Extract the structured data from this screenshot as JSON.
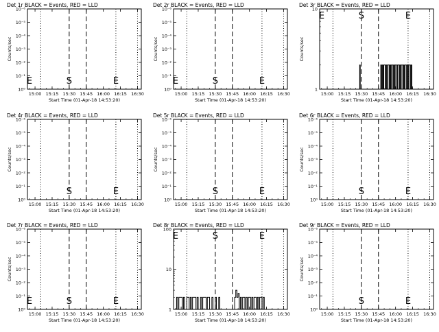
{
  "chart_data": [
    {
      "type": "line",
      "title": "Det 1r BLACK = Events, RED = LLD",
      "xlabel": "Start Time (01-Apr-18 14:53:20)",
      "ylabel": "Counts/sec",
      "x_ticks": [
        "15:00",
        "15:15",
        "15:30",
        "15:45",
        "16:00",
        "16:15",
        "16:30"
      ],
      "xlim": [
        "14:53:20",
        "16:33:20"
      ],
      "y_scale": "log",
      "y_tick_labels": [
        "10⁰",
        "10⁻¹",
        "10⁻²",
        "10⁻³",
        "10⁻⁴",
        "10⁻⁵",
        "10⁻⁶"
      ],
      "marker_lines": [
        {
          "time": "15:05",
          "style": "dotted",
          "label": ""
        },
        {
          "time": "15:30",
          "style": "dashed",
          "label": "S"
        },
        {
          "time": "15:45",
          "style": "dashed",
          "label": ""
        },
        {
          "time": "16:11",
          "style": "dotted",
          "label": "E"
        },
        {
          "time": "16:30",
          "style": "dotted",
          "label": ""
        }
      ],
      "corner_label": "E",
      "series": []
    },
    {
      "type": "line",
      "title": "Det 2r BLACK = Events, RED = LLD",
      "xlabel": "Start Time (01-Apr-18 14:53:20)",
      "ylabel": "Counts/sec",
      "x_ticks": [
        "15:00",
        "15:15",
        "15:30",
        "15:45",
        "16:00",
        "16:15",
        "16:30"
      ],
      "xlim": [
        "14:53:20",
        "16:33:20"
      ],
      "y_scale": "log",
      "y_tick_labels": [
        "10⁰",
        "10⁻¹",
        "10⁻²",
        "10⁻³",
        "10⁻⁴",
        "10⁻⁵",
        "10⁻⁶"
      ],
      "marker_lines": [
        {
          "time": "15:05",
          "style": "dotted",
          "label": ""
        },
        {
          "time": "15:30",
          "style": "dashed",
          "label": "S"
        },
        {
          "time": "15:45",
          "style": "dashed",
          "label": ""
        },
        {
          "time": "16:11",
          "style": "dotted",
          "label": "E"
        },
        {
          "time": "16:30",
          "style": "dotted",
          "label": ""
        }
      ],
      "corner_label": "E",
      "series": []
    },
    {
      "type": "line",
      "title": "Det 3r BLACK = Events, RED = LLD",
      "xlabel": "Start Time (01-Apr-18 14:53:20)",
      "ylabel": "Counts/sec",
      "x_ticks": [
        "15:00",
        "15:15",
        "15:30",
        "15:45",
        "16:00",
        "16:15",
        "16:30"
      ],
      "xlim": [
        "14:53:20",
        "16:33:20"
      ],
      "y_scale": "log",
      "y_tick_labels": [
        "1",
        "10"
      ],
      "ylim": [
        1,
        10
      ],
      "marker_lines": [
        {
          "time": "15:05",
          "style": "dotted",
          "label": ""
        },
        {
          "time": "15:30",
          "style": "dashed",
          "label": "S"
        },
        {
          "time": "15:45",
          "style": "dashed",
          "label": ""
        },
        {
          "time": "16:11",
          "style": "dotted",
          "label": "E"
        },
        {
          "time": "16:30",
          "style": "dotted",
          "label": ""
        }
      ],
      "corner_label": "E",
      "series": [
        {
          "color": "#000000",
          "points": [
            {
              "t": "15:28:30",
              "y": 2
            },
            {
              "t": "15:29:00",
              "y": 1
            },
            {
              "t": "15:47:00",
              "y": 2
            },
            {
              "t": "15:47:40",
              "y": 1
            },
            {
              "t": "15:48:20",
              "y": 2
            },
            {
              "t": "15:49:00",
              "y": 1
            },
            {
              "t": "15:49:40",
              "y": 2
            },
            {
              "t": "15:50:20",
              "y": 2
            },
            {
              "t": "15:51:00",
              "y": 1
            },
            {
              "t": "15:51:40",
              "y": 2
            },
            {
              "t": "15:52:20",
              "y": 1
            },
            {
              "t": "15:53:00",
              "y": 2
            },
            {
              "t": "15:53:40",
              "y": 2
            },
            {
              "t": "15:54:20",
              "y": 1
            },
            {
              "t": "15:55:00",
              "y": 2
            },
            {
              "t": "15:55:40",
              "y": 1
            },
            {
              "t": "15:56:20",
              "y": 2
            },
            {
              "t": "15:57:00",
              "y": 2
            },
            {
              "t": "15:57:40",
              "y": 1
            },
            {
              "t": "15:58:20",
              "y": 2
            },
            {
              "t": "15:59:00",
              "y": 1
            },
            {
              "t": "15:59:40",
              "y": 2
            },
            {
              "t": "16:00:20",
              "y": 2
            },
            {
              "t": "16:01:00",
              "y": 1
            },
            {
              "t": "16:01:40",
              "y": 2
            },
            {
              "t": "16:02:20",
              "y": 2
            },
            {
              "t": "16:03:00",
              "y": 1
            },
            {
              "t": "16:03:40",
              "y": 2
            },
            {
              "t": "16:04:20",
              "y": 1
            },
            {
              "t": "16:05:00",
              "y": 2
            },
            {
              "t": "16:05:40",
              "y": 2
            },
            {
              "t": "16:06:20",
              "y": 1
            },
            {
              "t": "16:07:00",
              "y": 2
            },
            {
              "t": "16:07:40",
              "y": 1
            },
            {
              "t": "16:08:20",
              "y": 2
            },
            {
              "t": "16:09:00",
              "y": 2
            },
            {
              "t": "16:09:40",
              "y": 1
            },
            {
              "t": "16:10:20",
              "y": 2
            },
            {
              "t": "16:11:00",
              "y": 1
            },
            {
              "t": "16:11:40",
              "y": 2
            },
            {
              "t": "16:12:20",
              "y": 2
            },
            {
              "t": "16:13:00",
              "y": 1
            },
            {
              "t": "16:13:40",
              "y": 2
            },
            {
              "t": "16:14:20",
              "y": 1
            }
          ]
        }
      ]
    },
    {
      "type": "line",
      "title": "Det 4r BLACK = Events, RED = LLD",
      "xlabel": "Start Time (01-Apr-18 14:53:20)",
      "ylabel": "Counts/sec",
      "x_ticks": [
        "15:00",
        "15:15",
        "15:30",
        "15:45",
        "16:00",
        "16:15",
        "16:30"
      ],
      "xlim": [
        "14:53:20",
        "16:33:20"
      ],
      "y_scale": "log",
      "y_tick_labels": [
        "10⁰",
        "10⁻¹",
        "10⁻²",
        "10⁻³",
        "10⁻⁴",
        "10⁻⁵",
        "10⁻⁶"
      ],
      "marker_lines": [
        {
          "time": "15:05",
          "style": "dotted",
          "label": ""
        },
        {
          "time": "15:30",
          "style": "dashed",
          "label": "S"
        },
        {
          "time": "15:45",
          "style": "dashed",
          "label": ""
        },
        {
          "time": "16:11",
          "style": "dotted",
          "label": "E"
        },
        {
          "time": "16:30",
          "style": "dotted",
          "label": ""
        }
      ],
      "corner_label": "",
      "series": []
    },
    {
      "type": "line",
      "title": "Det 5r BLACK = Events, RED = LLD",
      "xlabel": "Start Time (01-Apr-18 14:53:20)",
      "ylabel": "Counts/sec",
      "x_ticks": [
        "15:00",
        "15:15",
        "15:30",
        "15:45",
        "16:00",
        "16:15",
        "16:30"
      ],
      "xlim": [
        "14:53:20",
        "16:33:20"
      ],
      "y_scale": "log",
      "y_tick_labels": [
        "10⁰",
        "10⁻¹",
        "10⁻²",
        "10⁻³",
        "10⁻⁴",
        "10⁻⁵",
        "10⁻⁶"
      ],
      "marker_lines": [
        {
          "time": "15:05",
          "style": "dotted",
          "label": ""
        },
        {
          "time": "15:30",
          "style": "dashed",
          "label": "S"
        },
        {
          "time": "15:45",
          "style": "dashed",
          "label": ""
        },
        {
          "time": "16:11",
          "style": "dotted",
          "label": "E"
        },
        {
          "time": "16:30",
          "style": "dotted",
          "label": ""
        }
      ],
      "corner_label": "",
      "series": []
    },
    {
      "type": "line",
      "title": "Det 6r BLACK = Events, RED = LLD",
      "xlabel": "Start Time (01-Apr-18 14:53:20)",
      "ylabel": "Counts/sec",
      "x_ticks": [
        "15:00",
        "15:15",
        "15:30",
        "15:45",
        "16:00",
        "16:15",
        "16:30"
      ],
      "xlim": [
        "14:53:20",
        "16:33:20"
      ],
      "y_scale": "log",
      "y_tick_labels": [
        "10⁰",
        "10⁻¹",
        "10⁻²",
        "10⁻³",
        "10⁻⁴",
        "10⁻⁵",
        "10⁻⁶"
      ],
      "marker_lines": [
        {
          "time": "15:05",
          "style": "dotted",
          "label": ""
        },
        {
          "time": "15:30",
          "style": "dashed",
          "label": "S"
        },
        {
          "time": "15:45",
          "style": "dashed",
          "label": ""
        },
        {
          "time": "16:11",
          "style": "dotted",
          "label": "E"
        },
        {
          "time": "16:30",
          "style": "dotted",
          "label": ""
        }
      ],
      "corner_label": "",
      "series": []
    },
    {
      "type": "line",
      "title": "Det 7r BLACK = Events, RED = LLD",
      "xlabel": "Start Time (01-Apr-18 14:53:20)",
      "ylabel": "Counts/sec",
      "x_ticks": [
        "15:00",
        "15:15",
        "15:30",
        "15:45",
        "16:00",
        "16:15",
        "16:30"
      ],
      "xlim": [
        "14:53:20",
        "16:33:20"
      ],
      "y_scale": "log",
      "y_tick_labels": [
        "10⁰",
        "10⁻¹",
        "10⁻²",
        "10⁻³",
        "10⁻⁴",
        "10⁻⁵",
        "10⁻⁶"
      ],
      "marker_lines": [
        {
          "time": "15:05",
          "style": "dotted",
          "label": ""
        },
        {
          "time": "15:30",
          "style": "dashed",
          "label": "S"
        },
        {
          "time": "15:45",
          "style": "dashed",
          "label": ""
        },
        {
          "time": "16:11",
          "style": "dotted",
          "label": "E"
        },
        {
          "time": "16:30",
          "style": "dotted",
          "label": ""
        }
      ],
      "corner_label": "E",
      "series": []
    },
    {
      "type": "line",
      "title": "Det 8r BLACK = Events, RED = LLD",
      "xlabel": "Start Time (01-Apr-18 14:53:20)",
      "ylabel": "",
      "x_ticks": [
        "15:00",
        "15:15",
        "15:30",
        "15:45",
        "16:00",
        "16:15",
        "16:30"
      ],
      "xlim": [
        "14:53:20",
        "16:33:20"
      ],
      "y_scale": "log",
      "y_tick_labels": [
        "1",
        "10",
        "100"
      ],
      "ylim": [
        1,
        100
      ],
      "marker_lines": [
        {
          "time": "15:05",
          "style": "dotted",
          "label": ""
        },
        {
          "time": "15:30",
          "style": "dashed",
          "label": "S"
        },
        {
          "time": "15:45",
          "style": "dashed",
          "label": ""
        },
        {
          "time": "16:11",
          "style": "dotted",
          "label": "E"
        },
        {
          "time": "16:30",
          "style": "dotted",
          "label": ""
        }
      ],
      "corner_label": "E",
      "series": [
        {
          "color": "#000000",
          "points": [
            {
              "t": "14:56:00",
              "y": 2
            },
            {
              "t": "14:57:00",
              "y": 1
            },
            {
              "t": "14:58:00",
              "y": 2
            },
            {
              "t": "15:00:00",
              "y": 2
            },
            {
              "t": "15:01:00",
              "y": 1
            },
            {
              "t": "15:02:00",
              "y": 2
            },
            {
              "t": "15:03:00",
              "y": 1
            },
            {
              "t": "15:05:00",
              "y": 2
            },
            {
              "t": "15:07:00",
              "y": 1
            },
            {
              "t": "15:08:00",
              "y": 2
            },
            {
              "t": "15:09:00",
              "y": 1
            },
            {
              "t": "15:10:00",
              "y": 2
            },
            {
              "t": "15:12:00",
              "y": 2
            },
            {
              "t": "15:13:00",
              "y": 1
            },
            {
              "t": "15:14:00",
              "y": 2
            },
            {
              "t": "15:15:00",
              "y": 1
            },
            {
              "t": "15:17:00",
              "y": 2
            },
            {
              "t": "15:18:00",
              "y": 1
            },
            {
              "t": "15:19:00",
              "y": 2
            },
            {
              "t": "15:21:00",
              "y": 2
            },
            {
              "t": "15:22:00",
              "y": 1
            },
            {
              "t": "15:23:00",
              "y": 2
            },
            {
              "t": "15:25:00",
              "y": 1
            },
            {
              "t": "15:27:00",
              "y": 2
            },
            {
              "t": "15:28:00",
              "y": 1
            },
            {
              "t": "15:30:00",
              "y": 2
            },
            {
              "t": "15:31:00",
              "y": 1
            },
            {
              "t": "15:33:00",
              "y": 2
            },
            {
              "t": "15:34:00",
              "y": 1
            },
            {
              "t": "15:36:00",
              "y": 1
            },
            {
              "t": "15:38:00",
              "y": 1
            },
            {
              "t": "15:40:00",
              "y": 1
            },
            {
              "t": "15:42:00",
              "y": 1
            },
            {
              "t": "15:44:00",
              "y": 1
            },
            {
              "t": "15:46:00",
              "y": 1
            },
            {
              "t": "15:47:00",
              "y": 2
            },
            {
              "t": "15:48:00",
              "y": 3
            },
            {
              "t": "15:49:00",
              "y": 2
            },
            {
              "t": "15:50:00",
              "y": 2.5
            },
            {
              "t": "15:51:00",
              "y": 1
            },
            {
              "t": "15:52:00",
              "y": 2
            },
            {
              "t": "15:53:00",
              "y": 1
            },
            {
              "t": "15:54:00",
              "y": 2
            },
            {
              "t": "15:55:00",
              "y": 2
            },
            {
              "t": "15:56:00",
              "y": 1
            },
            {
              "t": "15:57:00",
              "y": 2
            },
            {
              "t": "15:58:00",
              "y": 1
            },
            {
              "t": "15:59:00",
              "y": 2
            },
            {
              "t": "16:00:00",
              "y": 2
            },
            {
              "t": "16:01:00",
              "y": 1
            },
            {
              "t": "16:02:00",
              "y": 2
            },
            {
              "t": "16:03:00",
              "y": 1
            },
            {
              "t": "16:04:00",
              "y": 2
            },
            {
              "t": "16:05:00",
              "y": 2
            },
            {
              "t": "16:06:00",
              "y": 1
            },
            {
              "t": "16:07:00",
              "y": 2
            },
            {
              "t": "16:08:00",
              "y": 1
            },
            {
              "t": "16:09:00",
              "y": 2
            },
            {
              "t": "16:10:00",
              "y": 2
            },
            {
              "t": "16:11:00",
              "y": 1
            },
            {
              "t": "16:12:00",
              "y": 2
            },
            {
              "t": "16:13:00",
              "y": 1
            }
          ]
        }
      ]
    },
    {
      "type": "line",
      "title": "Det 9r BLACK = Events, RED = LLD",
      "xlabel": "Start Time (01-Apr-18 14:53:20)",
      "ylabel": "Counts/sec",
      "x_ticks": [
        "15:00",
        "15:15",
        "15:30",
        "15:45",
        "16:00",
        "16:15",
        "16:30"
      ],
      "xlim": [
        "14:53:20",
        "16:33:20"
      ],
      "y_scale": "log",
      "y_tick_labels": [
        "10⁰",
        "10⁻¹",
        "10⁻²",
        "10⁻³",
        "10⁻⁴",
        "10⁻⁵",
        "10⁻⁶"
      ],
      "marker_lines": [
        {
          "time": "15:05",
          "style": "dotted",
          "label": ""
        },
        {
          "time": "15:30",
          "style": "dashed",
          "label": "S"
        },
        {
          "time": "15:45",
          "style": "dashed",
          "label": ""
        },
        {
          "time": "16:11",
          "style": "dotted",
          "label": "E"
        },
        {
          "time": "16:30",
          "style": "dotted",
          "label": ""
        }
      ],
      "corner_label": "",
      "series": []
    }
  ]
}
